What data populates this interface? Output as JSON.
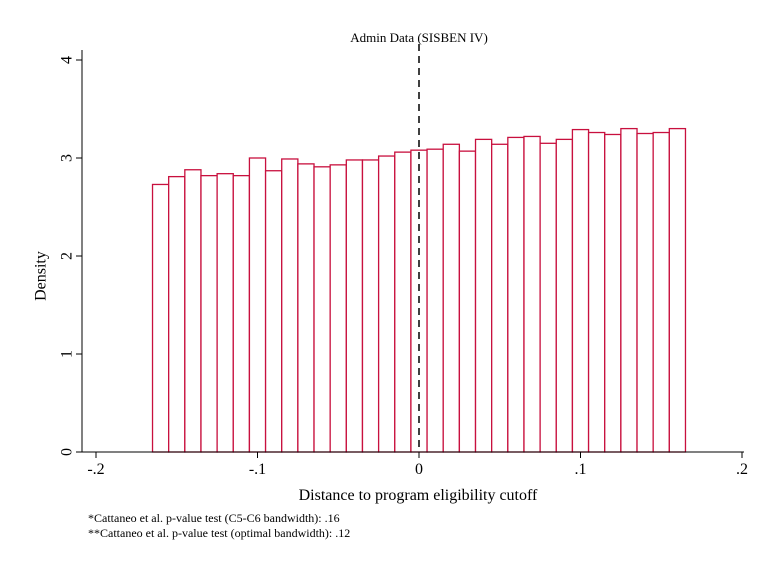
{
  "chart_data": {
    "type": "bar",
    "title": "Admin Data (SISBEN IV)",
    "xlabel": "Distance to program eligibility cutoff",
    "ylabel": "Density",
    "xlim": [
      -0.2,
      0.2
    ],
    "ylim": [
      0,
      4
    ],
    "x_ticks": [
      -0.2,
      -0.1,
      0,
      0.1,
      0.2
    ],
    "x_tick_labels": [
      "-.2",
      "-.1",
      "0",
      ".1",
      ".2"
    ],
    "y_ticks": [
      0,
      1,
      2,
      3,
      4
    ],
    "y_tick_labels": [
      "0",
      "1",
      "2",
      "3",
      "4"
    ],
    "cutoff": 0,
    "bin_width": 0.01,
    "bins_start": [
      -0.165,
      -0.155,
      -0.145,
      -0.135,
      -0.125,
      -0.115,
      -0.105,
      -0.095,
      -0.085,
      -0.075,
      -0.065,
      -0.055,
      -0.045,
      -0.035,
      -0.025,
      -0.015,
      -0.005,
      0.005,
      0.015,
      0.025,
      0.035,
      0.045,
      0.055,
      0.065,
      0.075,
      0.085,
      0.095,
      0.105,
      0.115,
      0.125,
      0.135,
      0.145,
      0.155
    ],
    "values": [
      2.73,
      2.81,
      2.88,
      2.82,
      2.84,
      2.82,
      3.0,
      2.87,
      2.99,
      2.94,
      2.91,
      2.93,
      2.98,
      2.98,
      3.02,
      3.06,
      3.08,
      3.09,
      3.14,
      3.07,
      3.19,
      3.14,
      3.21,
      3.22,
      3.15,
      3.19,
      3.29,
      3.26,
      3.24,
      3.3,
      3.25,
      3.26,
      3.3
    ],
    "grid": false,
    "bar_edge_color": "#c8103e",
    "bar_fill_color": "#ffffff"
  },
  "notes": [
    "*Cattaneo et al. p-value test (C5-C6 bandwidth): .16",
    "**Cattaneo et al. p-value test (optimal bandwidth): .12"
  ]
}
